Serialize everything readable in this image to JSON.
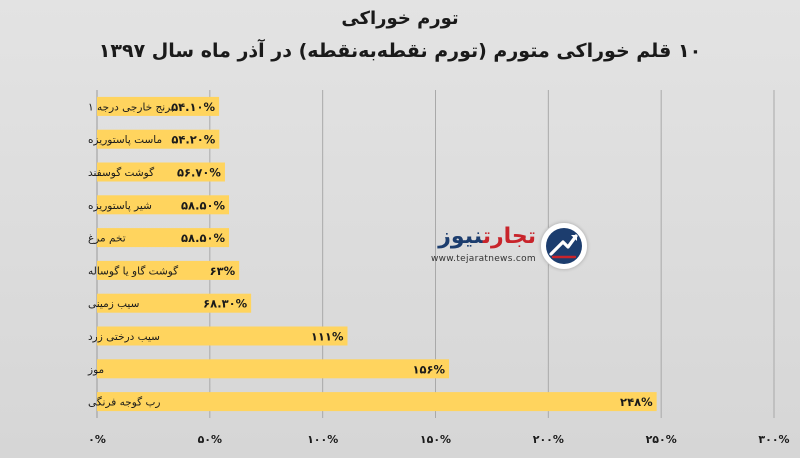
{
  "chart_data": {
    "type": "bar",
    "orientation": "horizontal",
    "title": "تورم خوراکی",
    "subtitle": "۱۰ قلم خوراکی متورم (تورم نقطه‌به‌نقطه) در آذر ماه سال ۱۳۹۷",
    "categories": [
      "برنج خارجی درجه ۱",
      "ماست پاستوریزه",
      "گوشت گوسفند",
      "شیر  پاستوریزه",
      "تخم مرغ",
      "گوشت گاو یا گوساله",
      "سیب زمینی",
      "سیب درختی زرد",
      "موز",
      "رب گوجه فرنگی"
    ],
    "values": [
      54.1,
      54.2,
      56.7,
      58.5,
      58.5,
      63,
      68.3,
      111,
      156,
      248
    ],
    "value_labels": [
      "۵۴.۱۰%",
      "۵۴.۲۰%",
      "۵۶.۷۰%",
      "۵۸.۵۰%",
      "۵۸.۵۰%",
      "۶۳%",
      "۶۸.۳۰%",
      "۱۱۱%",
      "۱۵۶%",
      "۲۴۸%"
    ],
    "xlim": [
      0,
      300
    ],
    "x_ticks": [
      0,
      50,
      100,
      150,
      200,
      250,
      300
    ],
    "x_tick_labels": [
      "۰%",
      "۵۰%",
      "۱۰۰%",
      "۱۵۰%",
      "۲۰۰%",
      "۲۵۰%",
      "۳۰۰%"
    ],
    "grid": true,
    "bar_color": "#ffd45e",
    "xlabel": "",
    "ylabel": ""
  },
  "watermark": {
    "name_part1": "تجارت",
    "name_part2": "نیوز",
    "url": "www.tejaratnews.com",
    "brand_red": "#c8242b",
    "brand_blue": "#1c3d6e"
  }
}
